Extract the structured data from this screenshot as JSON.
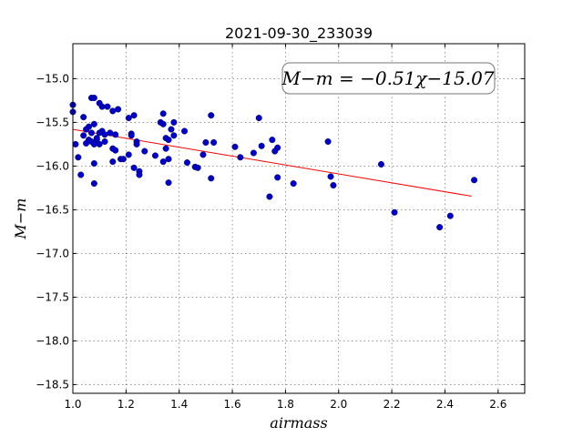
{
  "chart_data": {
    "type": "scatter",
    "title": "2021-09-30_233039",
    "xlabel": "airmass",
    "ylabel": "M−m",
    "xlim": [
      1.0,
      2.7
    ],
    "ylim": [
      -18.6,
      -14.6
    ],
    "y_inverted": true,
    "grid": true,
    "x_ticks": [
      "1.0",
      "1.2",
      "1.4",
      "1.6",
      "1.8",
      "2.0",
      "2.2",
      "2.4",
      "2.6"
    ],
    "y_ticks": [
      "−15.0",
      "−15.5",
      "−16.0",
      "−16.5",
      "−17.0",
      "−17.5",
      "−18.0",
      "−18.5"
    ],
    "annotation": "M−m = −0.51χ−15.07",
    "fit": {
      "slope": -0.51,
      "intercept": -15.07,
      "x_range": [
        1.0,
        2.5
      ],
      "color": "#ff0000"
    },
    "marker_color": "#0000cc",
    "points": [
      [
        1.0,
        -15.3
      ],
      [
        1.0,
        -15.38
      ],
      [
        1.01,
        -15.75
      ],
      [
        1.02,
        -15.9
      ],
      [
        1.03,
        -16.1
      ],
      [
        1.04,
        -15.44
      ],
      [
        1.04,
        -15.65
      ],
      [
        1.05,
        -15.74
      ],
      [
        1.05,
        -15.58
      ],
      [
        1.06,
        -15.55
      ],
      [
        1.06,
        -15.7
      ],
      [
        1.07,
        -15.22
      ],
      [
        1.07,
        -15.72
      ],
      [
        1.07,
        -15.62
      ],
      [
        1.08,
        -15.22
      ],
      [
        1.08,
        -15.52
      ],
      [
        1.08,
        -15.75
      ],
      [
        1.08,
        -16.2
      ],
      [
        1.08,
        -15.97
      ],
      [
        1.09,
        -15.7
      ],
      [
        1.09,
        -15.68
      ],
      [
        1.1,
        -15.28
      ],
      [
        1.1,
        -15.62
      ],
      [
        1.1,
        -15.75
      ],
      [
        1.11,
        -15.32
      ],
      [
        1.11,
        -15.6
      ],
      [
        1.12,
        -15.72
      ],
      [
        1.12,
        -15.64
      ],
      [
        1.13,
        -15.32
      ],
      [
        1.14,
        -15.62
      ],
      [
        1.15,
        -15.37
      ],
      [
        1.15,
        -15.8
      ],
      [
        1.15,
        -15.95
      ],
      [
        1.16,
        -15.64
      ],
      [
        1.16,
        -15.82
      ],
      [
        1.17,
        -15.35
      ],
      [
        1.18,
        -15.92
      ],
      [
        1.19,
        -15.92
      ],
      [
        1.21,
        -15.45
      ],
      [
        1.21,
        -15.87
      ],
      [
        1.22,
        -15.63
      ],
      [
        1.22,
        -15.65
      ],
      [
        1.23,
        -15.42
      ],
      [
        1.23,
        -16.02
      ],
      [
        1.24,
        -15.72
      ],
      [
        1.24,
        -15.75
      ],
      [
        1.25,
        -16.06
      ],
      [
        1.25,
        -16.1
      ],
      [
        1.27,
        -15.83
      ],
      [
        1.31,
        -15.88
      ],
      [
        1.33,
        -15.5
      ],
      [
        1.34,
        -15.4
      ],
      [
        1.34,
        -15.52
      ],
      [
        1.34,
        -15.95
      ],
      [
        1.35,
        -15.68
      ],
      [
        1.35,
        -15.8
      ],
      [
        1.36,
        -15.7
      ],
      [
        1.36,
        -15.92
      ],
      [
        1.36,
        -16.19
      ],
      [
        1.37,
        -15.58
      ],
      [
        1.38,
        -15.5
      ],
      [
        1.38,
        -15.65
      ],
      [
        1.42,
        -15.6
      ],
      [
        1.43,
        -15.96
      ],
      [
        1.46,
        -16.01
      ],
      [
        1.47,
        -16.02
      ],
      [
        1.49,
        -15.87
      ],
      [
        1.5,
        -15.73
      ],
      [
        1.52,
        -15.42
      ],
      [
        1.52,
        -16.14
      ],
      [
        1.53,
        -15.73
      ],
      [
        1.61,
        -15.78
      ],
      [
        1.63,
        -15.9
      ],
      [
        1.68,
        -15.85
      ],
      [
        1.7,
        -15.45
      ],
      [
        1.71,
        -15.77
      ],
      [
        1.74,
        -16.35
      ],
      [
        1.75,
        -15.7
      ],
      [
        1.76,
        -15.83
      ],
      [
        1.77,
        -16.13
      ],
      [
        1.77,
        -15.79
      ],
      [
        1.83,
        -16.2
      ],
      [
        1.96,
        -15.72
      ],
      [
        1.97,
        -16.12
      ],
      [
        1.98,
        -16.22
      ],
      [
        2.16,
        -15.98
      ],
      [
        2.21,
        -16.53
      ],
      [
        2.38,
        -16.7
      ],
      [
        2.42,
        -16.57
      ],
      [
        2.51,
        -16.16
      ]
    ]
  }
}
